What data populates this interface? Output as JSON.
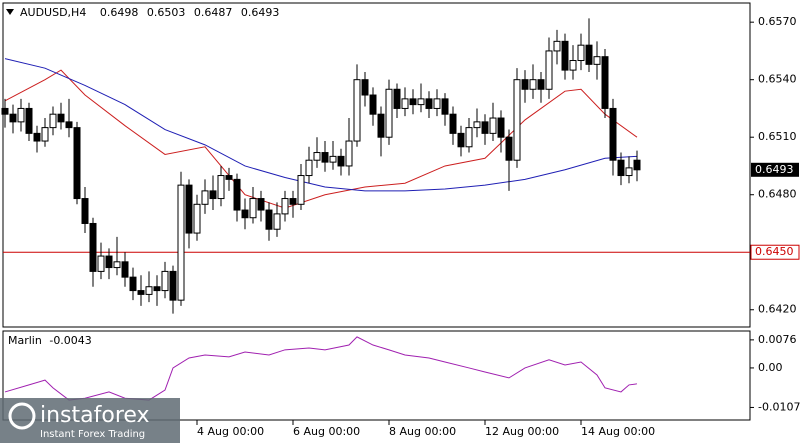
{
  "chart_data": [
    {
      "type": "candlestick",
      "symbol": "AUDUSD,H4",
      "candles": [
        [
          0.6525,
          0.653,
          0.6515,
          0.6522
        ],
        [
          0.6522,
          0.6527,
          0.6512,
          0.6518
        ],
        [
          0.6518,
          0.653,
          0.6513,
          0.6525
        ],
        [
          0.6525,
          0.6528,
          0.6508,
          0.6512
        ],
        [
          0.6512,
          0.6516,
          0.6502,
          0.6508
        ],
        [
          0.6508,
          0.652,
          0.6505,
          0.6515
        ],
        [
          0.6515,
          0.6526,
          0.6511,
          0.6522
        ],
        [
          0.6522,
          0.6528,
          0.6514,
          0.6518
        ],
        [
          0.6518,
          0.653,
          0.651,
          0.6515
        ],
        [
          0.6515,
          0.6518,
          0.6475,
          0.6478
        ],
        [
          0.6478,
          0.6484,
          0.646,
          0.6465
        ],
        [
          0.6465,
          0.6468,
          0.6432,
          0.644
        ],
        [
          0.644,
          0.6455,
          0.6436,
          0.6448
        ],
        [
          0.6448,
          0.6452,
          0.6436,
          0.6442
        ],
        [
          0.6442,
          0.6458,
          0.6438,
          0.6445
        ],
        [
          0.6445,
          0.645,
          0.6432,
          0.6437
        ],
        [
          0.6437,
          0.6442,
          0.6425,
          0.643
        ],
        [
          0.643,
          0.6438,
          0.6422,
          0.6428
        ],
        [
          0.6428,
          0.644,
          0.6424,
          0.6432
        ],
        [
          0.6432,
          0.6438,
          0.6422,
          0.643
        ],
        [
          0.643,
          0.6445,
          0.6426,
          0.644
        ],
        [
          0.644,
          0.6443,
          0.6418,
          0.6425
        ],
        [
          0.6425,
          0.6492,
          0.6422,
          0.6485
        ],
        [
          0.6485,
          0.6488,
          0.6452,
          0.646
        ],
        [
          0.646,
          0.648,
          0.6456,
          0.6475
        ],
        [
          0.6475,
          0.6488,
          0.647,
          0.6482
        ],
        [
          0.6482,
          0.649,
          0.6472,
          0.6478
        ],
        [
          0.6478,
          0.6495,
          0.6474,
          0.649
        ],
        [
          0.649,
          0.6494,
          0.6482,
          0.6488
        ],
        [
          0.6488,
          0.6491,
          0.6466,
          0.6472
        ],
        [
          0.6472,
          0.6478,
          0.6462,
          0.6468
        ],
        [
          0.6468,
          0.6484,
          0.6465,
          0.6478
        ],
        [
          0.6478,
          0.6482,
          0.6466,
          0.6472
        ],
        [
          0.6472,
          0.6476,
          0.6456,
          0.6462
        ],
        [
          0.6462,
          0.6476,
          0.6458,
          0.647
        ],
        [
          0.647,
          0.6482,
          0.6466,
          0.6478
        ],
        [
          0.6478,
          0.6482,
          0.6468,
          0.6475
        ],
        [
          0.6475,
          0.6496,
          0.6472,
          0.649
        ],
        [
          0.649,
          0.6505,
          0.6486,
          0.6498
        ],
        [
          0.6498,
          0.651,
          0.6494,
          0.6502
        ],
        [
          0.6502,
          0.6508,
          0.6492,
          0.6497
        ],
        [
          0.6497,
          0.6508,
          0.6493,
          0.65
        ],
        [
          0.65,
          0.6504,
          0.649,
          0.6495
        ],
        [
          0.6495,
          0.652,
          0.649,
          0.6508
        ],
        [
          0.6508,
          0.6548,
          0.6505,
          0.654
        ],
        [
          0.654,
          0.6544,
          0.6526,
          0.6532
        ],
        [
          0.6532,
          0.6536,
          0.6516,
          0.6522
        ],
        [
          0.6522,
          0.6526,
          0.65,
          0.651
        ],
        [
          0.651,
          0.654,
          0.6506,
          0.6535
        ],
        [
          0.6535,
          0.6538,
          0.652,
          0.6525
        ],
        [
          0.6525,
          0.6536,
          0.6521,
          0.653
        ],
        [
          0.653,
          0.6535,
          0.6522,
          0.6527
        ],
        [
          0.6527,
          0.6538,
          0.6523,
          0.653
        ],
        [
          0.653,
          0.6534,
          0.652,
          0.6525
        ],
        [
          0.6525,
          0.6535,
          0.6521,
          0.653
        ],
        [
          0.653,
          0.6533,
          0.6516,
          0.6522
        ],
        [
          0.6522,
          0.6526,
          0.6506,
          0.6512
        ],
        [
          0.6512,
          0.6516,
          0.65,
          0.6505
        ],
        [
          0.6505,
          0.652,
          0.6502,
          0.6515
        ],
        [
          0.6515,
          0.6525,
          0.651,
          0.6518
        ],
        [
          0.6518,
          0.6522,
          0.6506,
          0.6512
        ],
        [
          0.6512,
          0.6528,
          0.6508,
          0.652
        ],
        [
          0.652,
          0.6524,
          0.6502,
          0.651
        ],
        [
          0.651,
          0.6514,
          0.6482,
          0.6498
        ],
        [
          0.6498,
          0.6546,
          0.6494,
          0.654
        ],
        [
          0.654,
          0.6545,
          0.6528,
          0.6535
        ],
        [
          0.6535,
          0.6548,
          0.653,
          0.654
        ],
        [
          0.654,
          0.6544,
          0.6528,
          0.6535
        ],
        [
          0.6535,
          0.6562,
          0.653,
          0.6555
        ],
        [
          0.6555,
          0.6566,
          0.6548,
          0.656
        ],
        [
          0.656,
          0.6564,
          0.654,
          0.6545
        ],
        [
          0.6545,
          0.6558,
          0.654,
          0.655
        ],
        [
          0.655,
          0.6564,
          0.6545,
          0.6558
        ],
        [
          0.6558,
          0.6572,
          0.6544,
          0.6548
        ],
        [
          0.6548,
          0.656,
          0.654,
          0.6552
        ],
        [
          0.6552,
          0.6556,
          0.652,
          0.6525
        ],
        [
          0.6525,
          0.653,
          0.649,
          0.6498
        ],
        [
          0.6498,
          0.6502,
          0.6485,
          0.649
        ],
        [
          0.649,
          0.65,
          0.6486,
          0.6494
        ],
        [
          0.6498,
          0.6503,
          0.6487,
          0.6493
        ]
      ],
      "series": [
        {
          "color": "#cc1f1f",
          "x": [
            0,
            5,
            7,
            10,
            15,
            20,
            25,
            30,
            35,
            40,
            45,
            50,
            55,
            60,
            65,
            70,
            72,
            75,
            79
          ],
          "values": [
            0.6529,
            0.654,
            0.6545,
            0.6532,
            0.6516,
            0.6501,
            0.6505,
            0.648,
            0.6473,
            0.648,
            0.6484,
            0.6486,
            0.6495,
            0.6499,
            0.6519,
            0.6534,
            0.6535,
            0.6522,
            0.651
          ]
        },
        {
          "color": "#1f1fb4",
          "x": [
            0,
            5,
            10,
            15,
            20,
            25,
            30,
            35,
            40,
            45,
            50,
            55,
            60,
            65,
            70,
            75,
            79
          ],
          "values": [
            0.6551,
            0.6546,
            0.6537,
            0.6527,
            0.6514,
            0.6506,
            0.6495,
            0.6489,
            0.6484,
            0.6482,
            0.6482,
            0.6483,
            0.6485,
            0.6488,
            0.6493,
            0.6499,
            0.65
          ]
        }
      ],
      "ylim": [
        0.658,
        0.6411
      ],
      "yticks": [
        {
          "value": 0.657,
          "label": "0.6570"
        },
        {
          "value": 0.654,
          "label": "0.6540"
        },
        {
          "value": 0.651,
          "label": "0.6510"
        },
        {
          "value": 0.648,
          "label": "0.6480"
        },
        {
          "value": 0.645,
          "label": "0.6450"
        },
        {
          "value": 0.642,
          "label": "0.6420"
        }
      ],
      "level": {
        "value": 0.645,
        "label": "0.6450",
        "color": "#cc0000"
      },
      "xticks": [
        {
          "value": 24,
          "label": "4 Aug 00:00"
        },
        {
          "value": 36,
          "label": "6 Aug 00:00"
        },
        {
          "value": 48,
          "label": "8 Aug 00:00"
        },
        {
          "value": 60,
          "label": "12 Aug 00:00"
        },
        {
          "value": 72,
          "label": "14 Aug 00:00"
        }
      ]
    },
    {
      "type": "line",
      "name": "Marlin",
      "current": -0.0043,
      "color": "#a020b0",
      "x": [
        0,
        3,
        5,
        6,
        8,
        10,
        13,
        15,
        18,
        20,
        21,
        23,
        25,
        28,
        30,
        33,
        35,
        38,
        40,
        43,
        44,
        46,
        48,
        50,
        53,
        55,
        58,
        60,
        63,
        65,
        68,
        70,
        72,
        74,
        75,
        77,
        78,
        79
      ],
      "values": [
        -0.0065,
        -0.0046,
        -0.0033,
        -0.0054,
        -0.0087,
        -0.0082,
        -0.0065,
        -0.0082,
        -0.0087,
        -0.006,
        0.0,
        0.0027,
        0.0035,
        0.003,
        0.0043,
        0.0035,
        0.0049,
        0.0054,
        0.0049,
        0.0062,
        0.0084,
        0.0062,
        0.0049,
        0.0035,
        0.0027,
        0.0016,
        0.0,
        -0.0011,
        -0.0027,
        0.0,
        0.0022,
        0.0008,
        0.0016,
        -0.0019,
        -0.0054,
        -0.0065,
        -0.0046,
        -0.0043
      ],
      "ylim": [
        0.01,
        -0.0141
      ],
      "yticks": [
        0.0076,
        {
          "value": 0,
          "label": "0.00"
        },
        -0.0107
      ]
    }
  ],
  "watermark": {
    "name": "instaforex",
    "tagline": "Instant Forex Trading"
  }
}
